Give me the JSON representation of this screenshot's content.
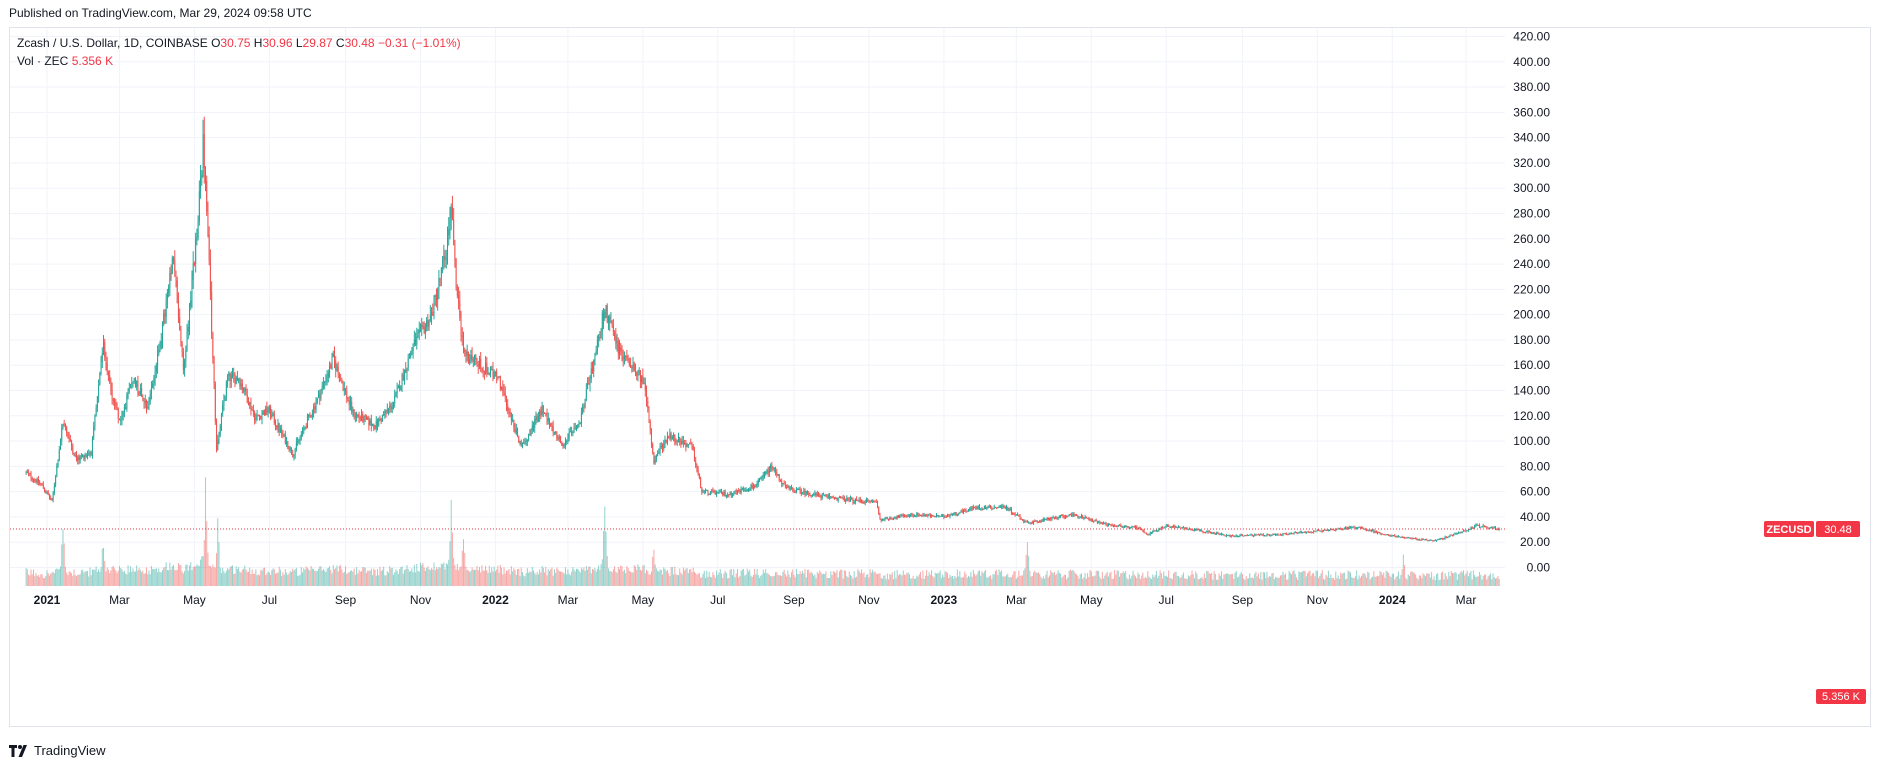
{
  "header": {
    "published": "Published on TradingView.com, Mar 29, 2024 09:58 UTC"
  },
  "legend": {
    "symbol": "Zcash / U.S. Dollar, 1D, COINBASE",
    "o_label": "O",
    "o": "30.75",
    "h_label": "H",
    "h": "30.96",
    "l_label": "L",
    "l": "29.87",
    "c_label": "C",
    "c": "30.48",
    "change": "−0.31 (−1.01%)",
    "vol_label": "Vol · ZEC",
    "vol": "5.356 K"
  },
  "badges": {
    "ticker": "ZECUSD",
    "last_price": "30.48",
    "last_volume": "5.356 K"
  },
  "footer": {
    "brand": "TradingView"
  },
  "colors": {
    "up": "#26a69a",
    "down": "#ef5350",
    "grid": "#f0f3fa",
    "badge": "#f23645"
  },
  "chart_data": {
    "type": "candlestick",
    "ylim": [
      0,
      420
    ],
    "y_ticks": [
      "0.00",
      "20.00",
      "40.00",
      "60.00",
      "80.00",
      "100.00",
      "120.00",
      "140.00",
      "160.00",
      "180.00",
      "200.00",
      "220.00",
      "240.00",
      "260.00",
      "280.00",
      "300.00",
      "320.00",
      "340.00",
      "360.00",
      "380.00",
      "400.00",
      "420.00"
    ],
    "x_ticks": [
      {
        "label": "2021",
        "date": "2021-01-01"
      },
      {
        "label": "Mar",
        "date": "2021-03-01"
      },
      {
        "label": "May",
        "date": "2021-05-01"
      },
      {
        "label": "Jul",
        "date": "2021-07-01"
      },
      {
        "label": "Sep",
        "date": "2021-09-01"
      },
      {
        "label": "Nov",
        "date": "2021-11-01"
      },
      {
        "label": "2022",
        "date": "2022-01-01"
      },
      {
        "label": "Mar",
        "date": "2022-03-01"
      },
      {
        "label": "May",
        "date": "2022-05-01"
      },
      {
        "label": "Jul",
        "date": "2022-07-01"
      },
      {
        "label": "Sep",
        "date": "2022-09-01"
      },
      {
        "label": "Nov",
        "date": "2022-11-01"
      },
      {
        "label": "2023",
        "date": "2023-01-01"
      },
      {
        "label": "Mar",
        "date": "2023-03-01"
      },
      {
        "label": "May",
        "date": "2023-05-01"
      },
      {
        "label": "Jul",
        "date": "2023-07-01"
      },
      {
        "label": "Sep",
        "date": "2023-09-01"
      },
      {
        "label": "Nov",
        "date": "2023-11-01"
      },
      {
        "label": "2024",
        "date": "2024-01-01"
      },
      {
        "label": "Mar",
        "date": "2024-03-01"
      }
    ],
    "series": [
      {
        "name": "ZECUSD",
        "points": [
          {
            "date": "2020-12-15",
            "close": 75
          },
          {
            "date": "2020-12-28",
            "close": 65
          },
          {
            "date": "2021-01-05",
            "close": 52
          },
          {
            "date": "2021-01-14",
            "close": 115
          },
          {
            "date": "2021-01-25",
            "close": 85
          },
          {
            "date": "2021-02-06",
            "close": 92
          },
          {
            "date": "2021-02-16",
            "close": 175
          },
          {
            "date": "2021-02-22",
            "close": 140
          },
          {
            "date": "2021-03-02",
            "close": 115
          },
          {
            "date": "2021-03-12",
            "close": 150
          },
          {
            "date": "2021-03-24",
            "close": 128
          },
          {
            "date": "2021-04-01",
            "close": 165
          },
          {
            "date": "2021-04-14",
            "close": 245
          },
          {
            "date": "2021-04-22",
            "close": 155
          },
          {
            "date": "2021-05-04",
            "close": 275
          },
          {
            "date": "2021-05-08",
            "close": 335
          },
          {
            "date": "2021-05-12",
            "close": 260
          },
          {
            "date": "2021-05-19",
            "close": 95
          },
          {
            "date": "2021-05-28",
            "close": 150
          },
          {
            "date": "2021-06-06",
            "close": 150
          },
          {
            "date": "2021-06-20",
            "close": 118
          },
          {
            "date": "2021-06-30",
            "close": 125
          },
          {
            "date": "2021-07-20",
            "close": 90
          },
          {
            "date": "2021-08-10",
            "close": 135
          },
          {
            "date": "2021-08-22",
            "close": 165
          },
          {
            "date": "2021-09-07",
            "close": 122
          },
          {
            "date": "2021-09-25",
            "close": 112
          },
          {
            "date": "2021-10-10",
            "close": 130
          },
          {
            "date": "2021-10-26",
            "close": 175
          },
          {
            "date": "2021-11-10",
            "close": 200
          },
          {
            "date": "2021-11-22",
            "close": 250
          },
          {
            "date": "2021-11-26",
            "close": 290
          },
          {
            "date": "2021-11-30",
            "close": 225
          },
          {
            "date": "2021-12-06",
            "close": 170
          },
          {
            "date": "2021-12-20",
            "close": 160
          },
          {
            "date": "2022-01-03",
            "close": 150
          },
          {
            "date": "2022-01-22",
            "close": 95
          },
          {
            "date": "2022-02-08",
            "close": 125
          },
          {
            "date": "2022-02-24",
            "close": 98
          },
          {
            "date": "2022-03-10",
            "close": 112
          },
          {
            "date": "2022-03-20",
            "close": 155
          },
          {
            "date": "2022-03-31",
            "close": 205
          },
          {
            "date": "2022-04-12",
            "close": 170
          },
          {
            "date": "2022-04-24",
            "close": 160
          },
          {
            "date": "2022-05-02",
            "close": 145
          },
          {
            "date": "2022-05-10",
            "close": 85
          },
          {
            "date": "2022-05-22",
            "close": 105
          },
          {
            "date": "2022-06-10",
            "close": 95
          },
          {
            "date": "2022-06-18",
            "close": 60
          },
          {
            "date": "2022-07-10",
            "close": 58
          },
          {
            "date": "2022-08-01",
            "close": 65
          },
          {
            "date": "2022-08-14",
            "close": 80
          },
          {
            "date": "2022-08-25",
            "close": 63
          },
          {
            "date": "2022-09-20",
            "close": 57
          },
          {
            "date": "2022-10-20",
            "close": 53
          },
          {
            "date": "2022-11-07",
            "close": 52
          },
          {
            "date": "2022-11-10",
            "close": 38
          },
          {
            "date": "2022-12-10",
            "close": 42
          },
          {
            "date": "2022-12-31",
            "close": 40
          },
          {
            "date": "2023-01-25",
            "close": 47
          },
          {
            "date": "2023-02-20",
            "close": 48
          },
          {
            "date": "2023-03-10",
            "close": 35
          },
          {
            "date": "2023-04-15",
            "close": 42
          },
          {
            "date": "2023-05-15",
            "close": 34
          },
          {
            "date": "2023-06-10",
            "close": 31
          },
          {
            "date": "2023-06-15",
            "close": 26
          },
          {
            "date": "2023-07-01",
            "close": 33
          },
          {
            "date": "2023-07-25",
            "close": 30
          },
          {
            "date": "2023-08-20",
            "close": 25
          },
          {
            "date": "2023-10-01",
            "close": 26
          },
          {
            "date": "2023-11-01",
            "close": 29
          },
          {
            "date": "2023-12-05",
            "close": 32
          },
          {
            "date": "2023-12-25",
            "close": 26
          },
          {
            "date": "2024-01-15",
            "close": 23
          },
          {
            "date": "2024-02-05",
            "close": 21
          },
          {
            "date": "2024-02-25",
            "close": 28
          },
          {
            "date": "2024-03-10",
            "close": 33
          },
          {
            "date": "2024-03-28",
            "close": 30.48
          }
        ]
      }
    ],
    "volume_spikes": [
      {
        "date": "2021-01-14",
        "rel": 0.55
      },
      {
        "date": "2021-02-16",
        "rel": 0.5
      },
      {
        "date": "2021-05-10",
        "rel": 0.95
      },
      {
        "date": "2021-05-20",
        "rel": 0.6
      },
      {
        "date": "2021-11-26",
        "rel": 0.72
      },
      {
        "date": "2021-12-06",
        "rel": 0.5
      },
      {
        "date": "2022-03-31",
        "rel": 0.8
      },
      {
        "date": "2022-05-10",
        "rel": 0.45
      },
      {
        "date": "2023-03-10",
        "rel": 0.45
      },
      {
        "date": "2024-01-10",
        "rel": 0.3
      }
    ]
  }
}
